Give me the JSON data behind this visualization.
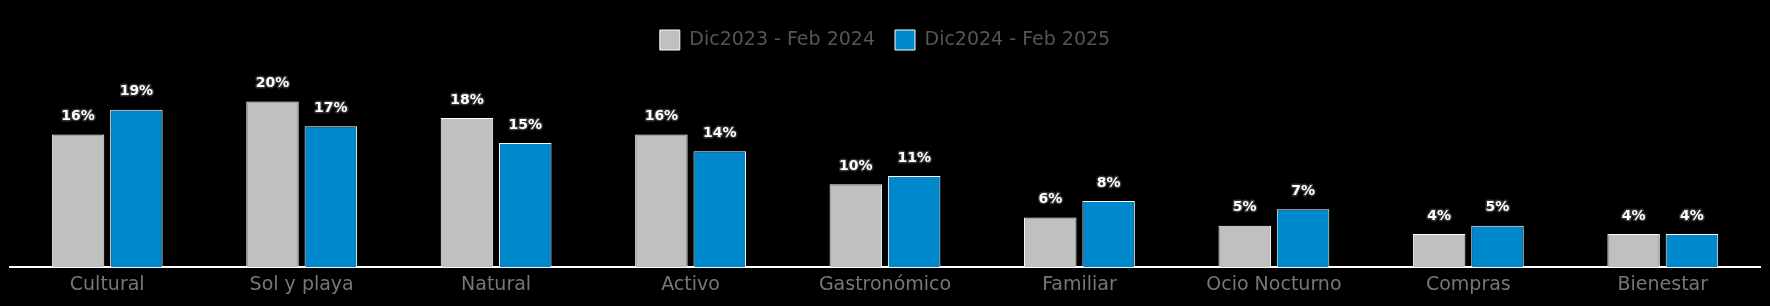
{
  "chart_data": {
    "type": "bar",
    "categories": [
      "Cultural",
      "Sol y playa",
      "Natural",
      "Activo",
      "Gastronómico",
      "Familiar",
      "Ocio Nocturno",
      "Compras",
      "Bienestar"
    ],
    "series": [
      {
        "name": "Dic2023 - Feb 2024",
        "color": "#c0c0c0",
        "values": [
          16,
          20,
          18,
          16,
          10,
          6,
          5,
          4,
          4
        ],
        "value_labels": [
          "16%",
          "20%",
          "18%",
          "16%",
          "10%",
          "6%",
          "5%",
          "4%",
          "4%"
        ]
      },
      {
        "name": "Dic2024 - Feb 2025",
        "color": "#0088cc",
        "values": [
          19,
          17,
          15,
          14,
          11,
          8,
          7,
          5,
          4
        ],
        "value_labels": [
          "19%",
          "17%",
          "15%",
          "14%",
          "11%",
          "8%",
          "7%",
          "5%",
          "4%"
        ]
      }
    ],
    "legend": "top",
    "tick_labels": "x"
  }
}
